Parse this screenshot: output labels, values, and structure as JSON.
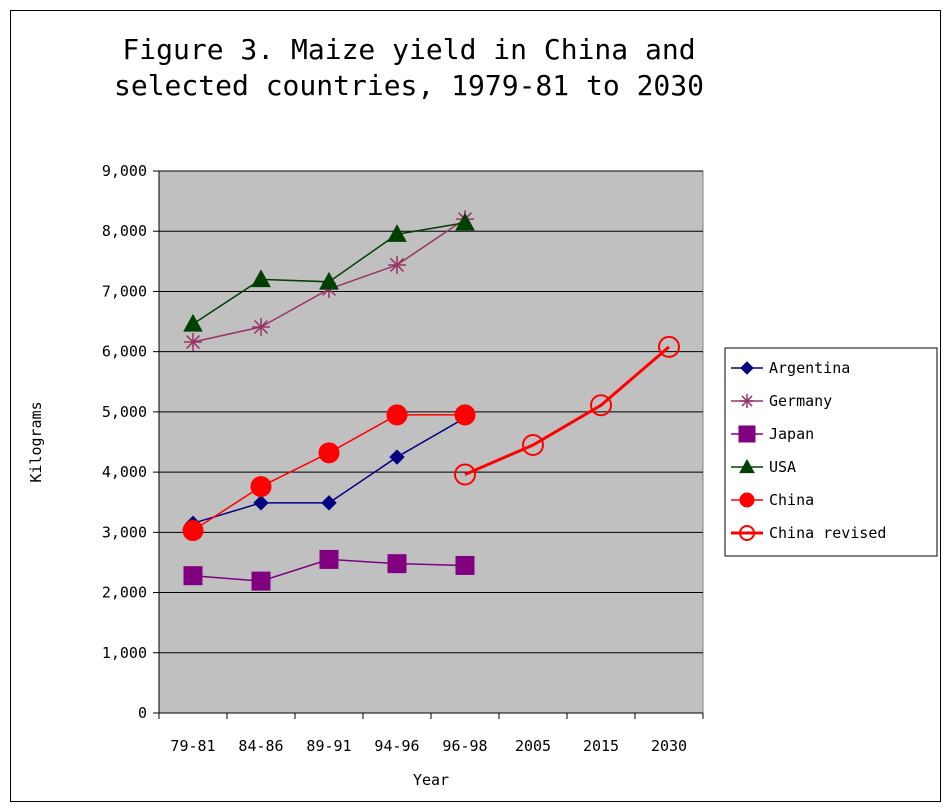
{
  "chart_data": {
    "type": "line",
    "title_lines": [
      "Figure 3. Maize yield in China and",
      "selected countries, 1979-81 to 2030"
    ],
    "xlabel": "Year",
    "ylabel": "Kilograms",
    "categories": [
      "79-81",
      "84-86",
      "89-91",
      "94-96",
      "96-98",
      "2005",
      "2015",
      "2030"
    ],
    "y_tick_labels": [
      "0",
      "1,000",
      "2,000",
      "3,000",
      "4,000",
      "5,000",
      "6,000",
      "7,000",
      "8,000",
      "9,000"
    ],
    "ylim": [
      0,
      9000
    ],
    "y_step": 1000,
    "grid": "horizontal",
    "legend_position": "right",
    "plot_background": "#c0c0c0",
    "series": [
      {
        "name": "Argentina",
        "color": "#000080",
        "marker": "diamond",
        "values": [
          3150,
          3490,
          3490,
          4250,
          4900,
          null,
          null,
          null
        ]
      },
      {
        "name": "Germany",
        "color": "#993366",
        "marker": "asterisk",
        "values": [
          6160,
          6410,
          7040,
          7440,
          8200,
          null,
          null,
          null
        ]
      },
      {
        "name": "Japan",
        "color": "#800080",
        "marker": "square",
        "values": [
          2280,
          2190,
          2550,
          2480,
          2450,
          null,
          null,
          null
        ]
      },
      {
        "name": "USA",
        "color": "#004000",
        "marker": "triangle",
        "values": [
          6460,
          7200,
          7160,
          7950,
          8140,
          null,
          null,
          null
        ]
      },
      {
        "name": "China",
        "color": "#ff0000",
        "marker": "circle",
        "values": [
          3030,
          3760,
          4320,
          4950,
          4950,
          null,
          null,
          null
        ]
      },
      {
        "name": "China revised",
        "color": "#ff0000",
        "marker": "circle-open",
        "values": [
          null,
          null,
          null,
          null,
          3960,
          4450,
          5110,
          6080
        ]
      }
    ]
  }
}
